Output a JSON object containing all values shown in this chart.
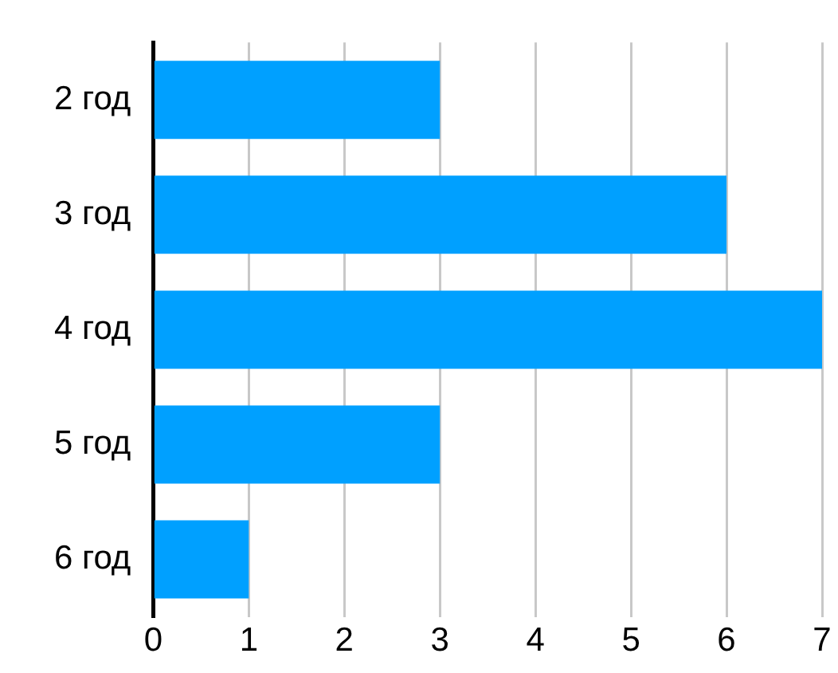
{
  "chart_data": {
    "type": "bar",
    "orientation": "horizontal",
    "categories": [
      "2 год",
      "3 год",
      "4 год",
      "5 год",
      "6 год"
    ],
    "values": [
      3,
      6,
      7,
      3,
      1
    ],
    "color": "#00a0ff",
    "xlim": [
      0,
      7
    ],
    "xticks": [
      0,
      1,
      2,
      3,
      4,
      5,
      6,
      7
    ],
    "grid": "x",
    "legend": false
  }
}
